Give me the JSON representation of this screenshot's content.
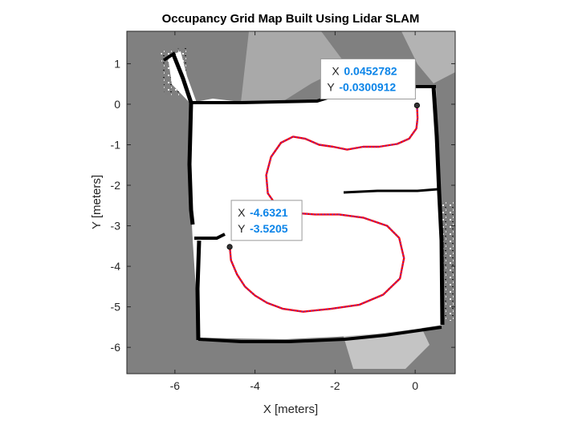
{
  "chart_data": {
    "type": "line",
    "title": "Occupancy Grid Map Built Using Lidar SLAM",
    "xlabel": "X [meters]",
    "ylabel": "Y [meters]",
    "xlim": [
      -7.2,
      1.0
    ],
    "ylim": [
      -6.65,
      1.8
    ],
    "xticks": [
      -6,
      -4,
      -2,
      0
    ],
    "yticks": [
      1,
      0,
      -1,
      -2,
      -3,
      -4,
      -5,
      -6
    ],
    "xtick_labels": [
      "-6",
      "-4",
      "-2",
      "0"
    ],
    "ytick_labels": [
      "1",
      "0",
      "-1",
      "-2",
      "-3",
      "-4",
      "-5",
      "-6"
    ],
    "grid": false,
    "background": "occupancy grid map (gray = unknown, white = free, black = occupied)",
    "colors": {
      "unknown": "#808080",
      "free": "#ffffff",
      "occupied": "#000000",
      "path_primary": "#ff0000",
      "path_secondary": "#3a3aff",
      "datatip_value": "#0b84e8",
      "datatip_marker": "#333333"
    },
    "series": [
      {
        "x": [
          0.045,
          0.06,
          0.03,
          -0.15,
          -0.45,
          -0.9,
          -1.3,
          -1.7,
          -2.05,
          -2.4,
          -2.75,
          -3.05,
          -3.35,
          -3.6,
          -3.72,
          -3.68,
          -3.45,
          -3.05,
          -2.5,
          -1.9,
          -1.3,
          -0.7,
          -0.4,
          -0.28,
          -0.38,
          -0.8,
          -1.4,
          -2.1,
          -2.8,
          -3.3,
          -3.7,
          -4.0,
          -4.25,
          -4.45,
          -4.6,
          -4.63
        ],
        "y": [
          -0.03,
          -0.35,
          -0.6,
          -0.85,
          -0.98,
          -1.05,
          -1.05,
          -1.12,
          -1.05,
          -1.0,
          -0.85,
          -0.8,
          -0.95,
          -1.3,
          -1.75,
          -2.2,
          -2.52,
          -2.68,
          -2.72,
          -2.72,
          -2.8,
          -3.0,
          -3.3,
          -3.8,
          -4.3,
          -4.7,
          -4.95,
          -5.05,
          -5.12,
          -5.05,
          -4.9,
          -4.72,
          -4.5,
          -4.2,
          -3.85,
          -3.52
        ]
      }
    ],
    "datatips": [
      {
        "x_key": "X",
        "x_value": "0.0452782",
        "y_key": "Y",
        "y_value": "-0.0300912",
        "x": 0.0452782,
        "y": -0.0300912
      },
      {
        "x_key": "X",
        "x_value": "-4.6321",
        "y_key": "Y",
        "y_value": "-3.5205",
        "x": -4.6321,
        "y": -3.5205
      }
    ]
  }
}
